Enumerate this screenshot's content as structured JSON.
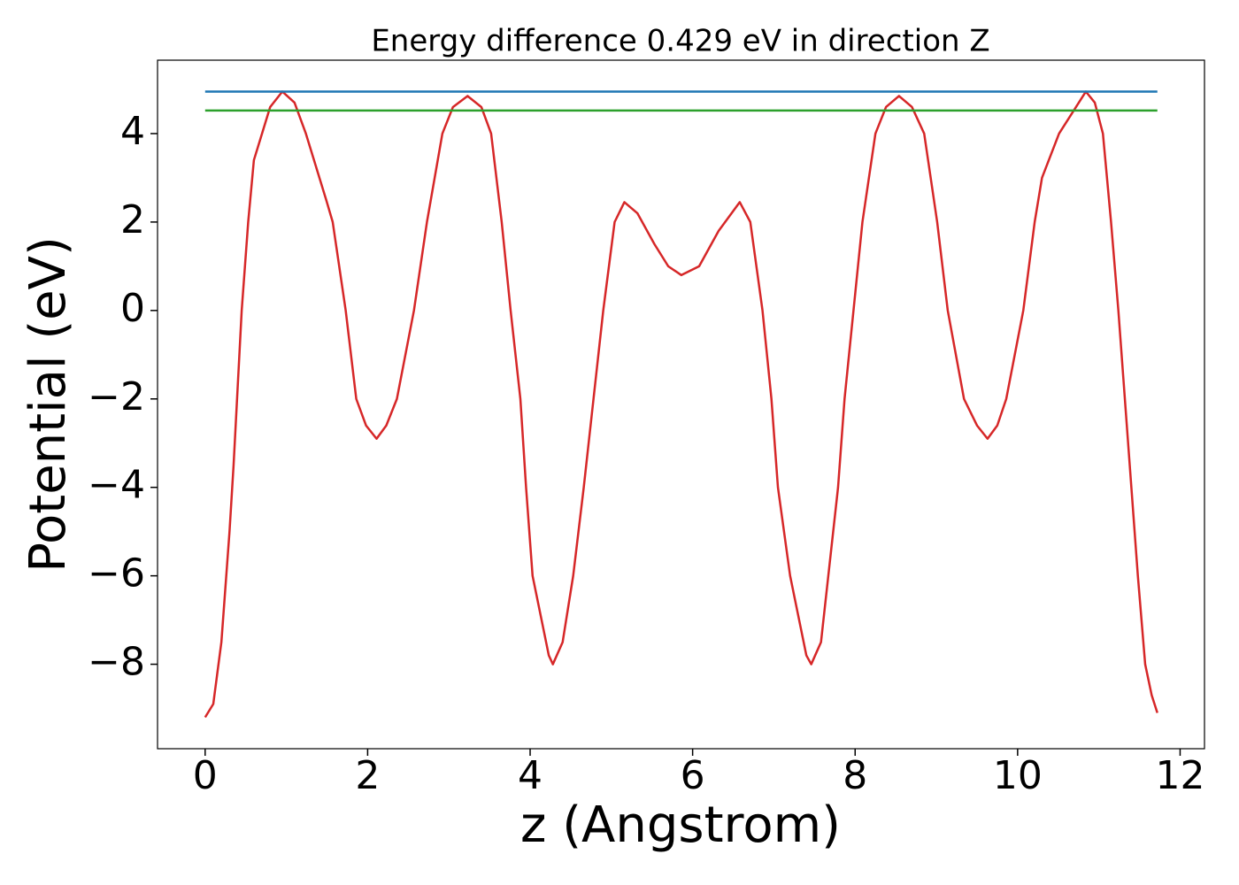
{
  "chart_data": {
    "type": "line",
    "title": "Energy difference 0.429 eV in direction Z",
    "xlabel": "z (Angstrom)",
    "ylabel": "Potential (eV)",
    "xlim": [
      -0.586,
      12.3
    ],
    "ylim": [
      -9.91,
      5.66
    ],
    "xticks": [
      0,
      2,
      4,
      6,
      8,
      10,
      12
    ],
    "yticks": [
      {
        "value": -8,
        "label": "−8"
      },
      {
        "value": -6,
        "label": "−6"
      },
      {
        "value": -4,
        "label": "−4"
      },
      {
        "value": -2,
        "label": "−2"
      },
      0,
      2,
      4
    ],
    "series": [
      {
        "color": "#d62728",
        "x": [
          0,
          0.1,
          0.2,
          0.3,
          0.35,
          0.45,
          0.53,
          0.6,
          0.7,
          0.8,
          0.95,
          1.1,
          1.24,
          1.49,
          1.57,
          1.73,
          1.86,
          1.98,
          2.11,
          2.23,
          2.36,
          2.57,
          2.73,
          2.92,
          3.05,
          3.23,
          3.4,
          3.52,
          3.65,
          3.76,
          3.88,
          3.95,
          4.03,
          4.23,
          4.28,
          4.4,
          4.53,
          4.66,
          4.78,
          4.9,
          5.04,
          5.16,
          5.32,
          5.53,
          5.7,
          5.86,
          6.08,
          6.32,
          6.58,
          6.71,
          6.86,
          6.97,
          7.05,
          7.2,
          7.4,
          7.46,
          7.58,
          7.67,
          7.79,
          7.87,
          7.98,
          8.09,
          8.25,
          8.38,
          8.54,
          8.7,
          8.85,
          9.01,
          9.14,
          9.34,
          9.5,
          9.63,
          9.75,
          9.86,
          10.07,
          10.21,
          10.3,
          10.51,
          10.84,
          10.95,
          11.05,
          11.15,
          11.24,
          11.4,
          11.48,
          11.57,
          11.65,
          11.72
        ],
        "values": [
          -9.2,
          -8.9,
          -7.5,
          -5.0,
          -3.5,
          0,
          2,
          3.4,
          4.0,
          4.6,
          4.95,
          4.7,
          4.0,
          2.5,
          2,
          0,
          -2,
          -2.6,
          -2.9,
          -2.6,
          -2,
          0,
          2,
          4,
          4.6,
          4.85,
          4.6,
          4,
          2,
          0,
          -2,
          -4,
          -6,
          -7.8,
          -8.0,
          -7.5,
          -6,
          -4,
          -2,
          0,
          2,
          2.45,
          2.2,
          1.5,
          1.0,
          0.8,
          1.0,
          1.8,
          2.45,
          2,
          0,
          -2,
          -4,
          -6,
          -7.8,
          -8.0,
          -7.5,
          -6,
          -4,
          -2,
          0,
          2,
          4,
          4.6,
          4.85,
          4.6,
          4,
          2,
          0,
          -2,
          -2.6,
          -2.9,
          -2.6,
          -2,
          0,
          2,
          3,
          4,
          4.95,
          4.7,
          4,
          2,
          0,
          -4,
          -6,
          -8,
          -8.7,
          -9.1
        ]
      },
      {
        "color": "#1f77b4",
        "x": [
          0,
          11.72
        ],
        "values": [
          4.95,
          4.95
        ]
      },
      {
        "color": "#2ca02c",
        "x": [
          0,
          11.72
        ],
        "values": [
          4.521,
          4.521
        ]
      }
    ]
  }
}
